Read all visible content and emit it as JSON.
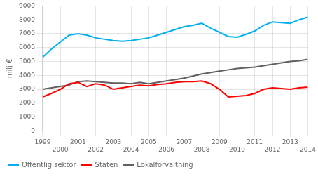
{
  "chart_data": {
    "type": "line",
    "x": [
      1999,
      1999.5,
      2000,
      2000.5,
      2001,
      2001.5,
      2002,
      2002.5,
      2003,
      2003.5,
      2004,
      2004.5,
      2005,
      2005.5,
      2006,
      2006.5,
      2007,
      2007.5,
      2008,
      2008.5,
      2009,
      2009.5,
      2010,
      2010.5,
      2011,
      2011.5,
      2012,
      2012.5,
      2013,
      2013.5,
      2014
    ],
    "series": [
      {
        "name": "Offentlig sektor",
        "color": "#00b0f0",
        "values": [
          5300,
          5900,
          6400,
          6900,
          7000,
          6900,
          6700,
          6600,
          6500,
          6450,
          6500,
          6600,
          6700,
          6900,
          7100,
          7300,
          7500,
          7600,
          7750,
          7400,
          7100,
          6800,
          6750,
          6950,
          7200,
          7600,
          7850,
          7800,
          7750,
          8000,
          8200
        ]
      },
      {
        "name": "Staten",
        "color": "#ff0000",
        "values": [
          2450,
          2700,
          3000,
          3400,
          3500,
          3200,
          3400,
          3300,
          3000,
          3100,
          3200,
          3300,
          3250,
          3350,
          3400,
          3500,
          3550,
          3550,
          3600,
          3400,
          3000,
          2450,
          2500,
          2550,
          2700,
          3000,
          3100,
          3050,
          3000,
          3100,
          3150
        ]
      },
      {
        "name": "Lokalförvaltning",
        "color": "#606060",
        "values": [
          3000,
          3100,
          3200,
          3300,
          3550,
          3600,
          3550,
          3500,
          3450,
          3450,
          3400,
          3500,
          3400,
          3500,
          3600,
          3700,
          3800,
          3950,
          4100,
          4200,
          4300,
          4400,
          4500,
          4550,
          4600,
          4700,
          4800,
          4900,
          5000,
          5050,
          5150
        ]
      }
    ],
    "ylabel": "milj €",
    "xlim": [
      1999,
      2014
    ],
    "xticks": [
      1999,
      2000,
      2001,
      2002,
      2003,
      2004,
      2005,
      2006,
      2007,
      2008,
      2009,
      2010,
      2011,
      2012,
      2013,
      2014
    ],
    "ylim": [
      0,
      9000
    ],
    "yticks": [
      0,
      1000,
      2000,
      3000,
      4000,
      5000,
      6000,
      7000,
      8000,
      9000
    ],
    "grid": true,
    "legend": "lower left"
  }
}
